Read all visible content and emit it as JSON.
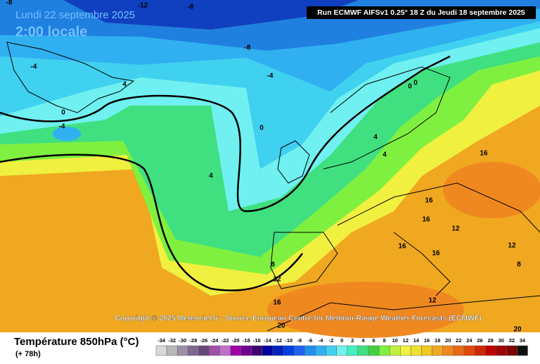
{
  "header": {
    "date": "Lundi 22 septembre 2025",
    "time": "2:00 locale",
    "run": "Run ECMWF AIFSv1 0.25° 18 Z du Jeudi 18 septembre 2025"
  },
  "map": {
    "copyright": "Copyright © 2025 Meteociel.fr - Source European Centre for Medium-Range Weather Forecasts (ECMWF)",
    "contour_labels": [
      -8,
      -12,
      -8,
      -8,
      -4,
      -4,
      4,
      0,
      -4,
      4,
      0,
      0,
      0,
      4,
      4,
      16,
      16,
      16,
      12,
      16,
      16,
      12,
      8,
      8,
      12,
      16,
      12,
      20,
      20
    ]
  },
  "footer": {
    "title": "Température 850hPa (°C)",
    "lead": "(+ 78h)"
  },
  "legend": {
    "values": [
      -34,
      -32,
      -30,
      -28,
      -26,
      -24,
      -22,
      -20,
      -18,
      -16,
      -14,
      -12,
      -10,
      -8,
      -6,
      -4,
      -2,
      0,
      2,
      4,
      6,
      8,
      10,
      12,
      14,
      16,
      18,
      20,
      22,
      24,
      26,
      28,
      30,
      32,
      34
    ],
    "colors": [
      "#d8d8d8",
      "#b8b8b8",
      "#9a90a8",
      "#806890",
      "#684878",
      "#a050a8",
      "#c070c8",
      "#a000a8",
      "#700090",
      "#400070",
      "#0000a0",
      "#0020c0",
      "#0040e0",
      "#2060f0",
      "#2090f0",
      "#30b0f0",
      "#40d0f0",
      "#70f0f0",
      "#40f0c0",
      "#40e080",
      "#40d040",
      "#80f040",
      "#c0f040",
      "#f0f040",
      "#f0e030",
      "#f0c820",
      "#f0a820",
      "#f08820",
      "#e86818",
      "#e04808",
      "#d02800",
      "#c00000",
      "#a00000",
      "#800000",
      "#101010"
    ]
  }
}
